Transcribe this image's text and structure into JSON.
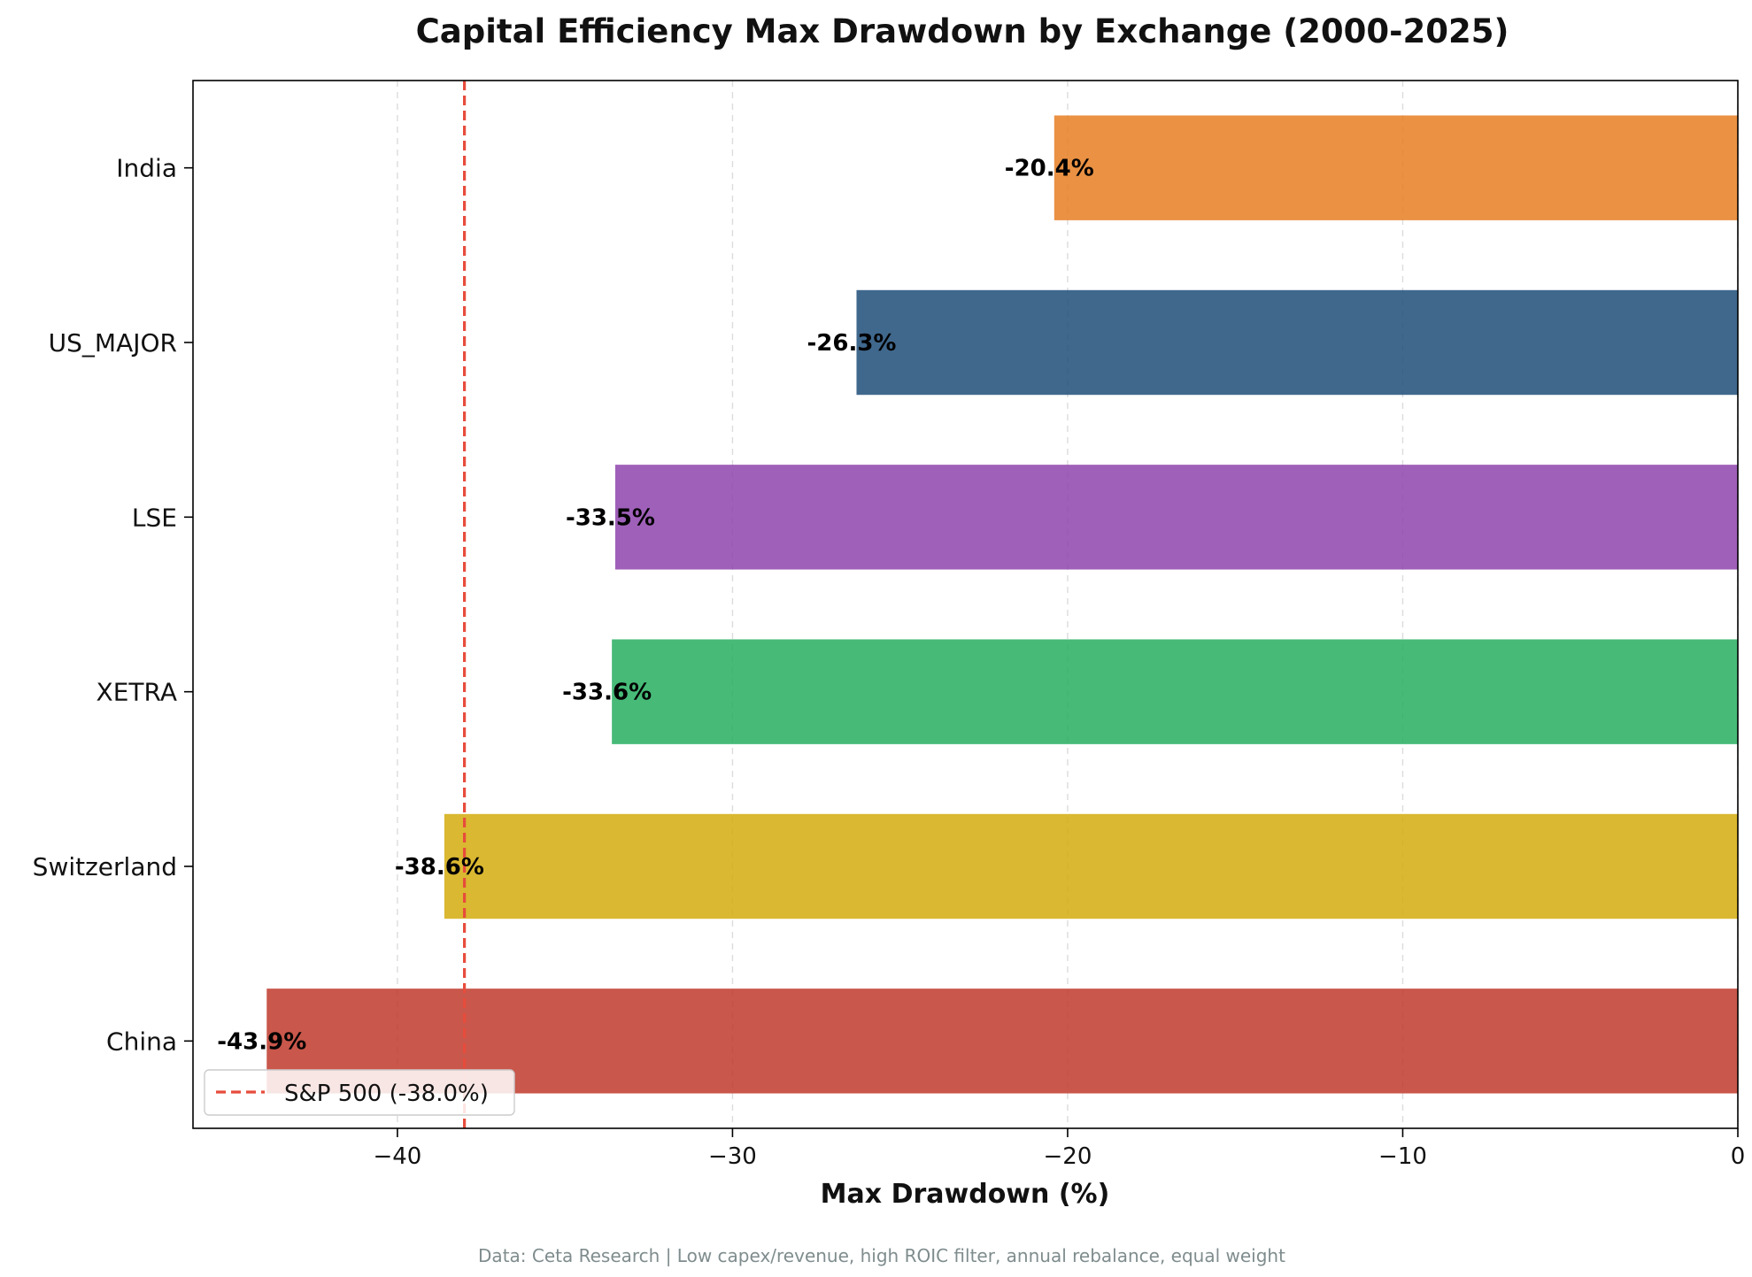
{
  "chart_data": {
    "type": "bar",
    "orientation": "horizontal",
    "title": "Capital Efficiency Max Drawdown by Exchange (2000-2025)",
    "xlabel": "Max Drawdown (%)",
    "ylabel": "",
    "categories": [
      "India",
      "US_MAJOR",
      "LSE",
      "XETRA",
      "Switzerland",
      "China"
    ],
    "values": [
      -20.4,
      -26.3,
      -33.5,
      -33.6,
      -38.6,
      -43.9
    ],
    "data_labels": [
      "-20.4%",
      "-26.3%",
      "-33.5%",
      "-33.6%",
      "-38.6%",
      "-43.9%"
    ],
    "colors": [
      "#e67e22",
      "#1f4e79",
      "#8e44ad",
      "#27ae60",
      "#d4ac0d",
      "#c0392b"
    ],
    "xlim": [
      -46.1,
      0
    ],
    "xticks": [
      -40,
      -30,
      -20,
      -10,
      0
    ],
    "xtick_labels": [
      "−40",
      "−30",
      "−20",
      "−10",
      "0"
    ],
    "reference_line": {
      "value": -38.0,
      "label": "S&P 500 (-38.0%)",
      "color": "#e74c3c",
      "style": "dashed"
    },
    "grid": "x-dashed",
    "legend": {
      "position": "lower-left",
      "entries": [
        "S&P 500 (-38.0%)"
      ]
    }
  },
  "source_note": "Data: Ceta Research | Low capex/revenue, high ROIC filter, annual rebalance, equal weight"
}
